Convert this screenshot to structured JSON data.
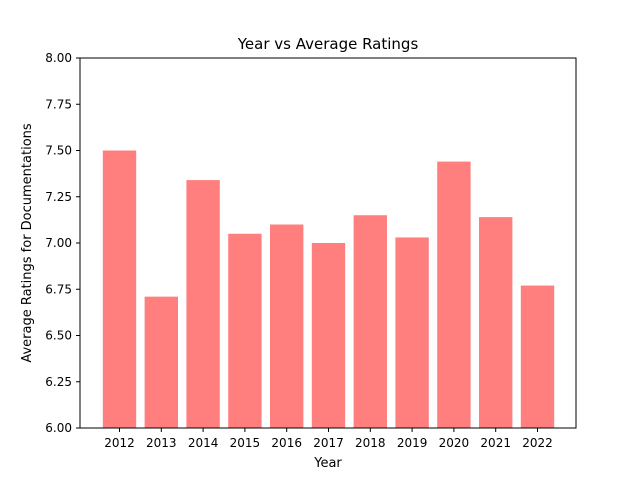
{
  "chart_data": {
    "type": "bar",
    "title": "Year vs Average Ratings",
    "xlabel": "Year",
    "ylabel": "Average Ratings for Documentations",
    "categories": [
      "2012",
      "2013",
      "2014",
      "2015",
      "2016",
      "2017",
      "2018",
      "2019",
      "2020",
      "2021",
      "2022"
    ],
    "values": [
      7.5,
      6.71,
      7.34,
      7.05,
      7.1,
      7.0,
      7.15,
      7.03,
      7.44,
      7.14,
      6.77
    ],
    "ylim": [
      6.0,
      8.0
    ],
    "yticks": [
      "6.00",
      "6.25",
      "6.50",
      "6.75",
      "7.00",
      "7.25",
      "7.50",
      "7.75",
      "8.00"
    ],
    "grid": false,
    "bar_color": "#ff7f7f",
    "axes_color": "#000000"
  }
}
